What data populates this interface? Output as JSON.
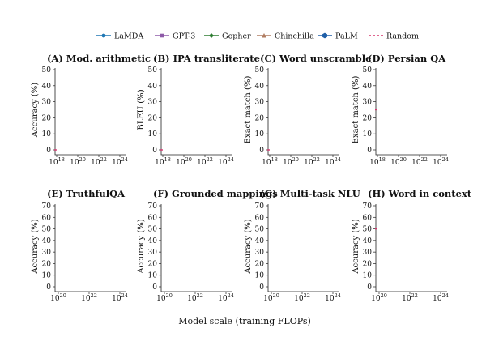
{
  "legend": [
    {
      "name": "LaMDA",
      "color": "#1f77b4",
      "marker": "circle",
      "line": "solid"
    },
    {
      "name": "GPT-3",
      "color": "#8e5aa8",
      "marker": "square",
      "line": "solid"
    },
    {
      "name": "Gopher",
      "color": "#2e7d32",
      "marker": "diamond",
      "line": "solid"
    },
    {
      "name": "Chinchilla",
      "color": "#b07d62",
      "marker": "triangle",
      "line": "solid"
    },
    {
      "name": "PaLM",
      "color": "#1f5fa8",
      "marker": "hexagon",
      "line": "solid"
    },
    {
      "name": "Random",
      "color": "#d6336c",
      "marker": "none",
      "line": "dashed"
    }
  ],
  "xlabel": "Model scale (training FLOPs)",
  "chart_data": [
    {
      "type": "line",
      "title": "(A) Mod. arithmetic",
      "ylabel": "Accuracy (%)",
      "ylim": [
        0,
        50
      ],
      "yticks": [
        "0",
        "10",
        "20",
        "30",
        "40",
        "50"
      ],
      "xticks": [
        {
          "base": "10",
          "exp": "18"
        },
        {
          "base": "10",
          "exp": "20"
        },
        {
          "base": "10",
          "exp": "22"
        },
        {
          "base": "10",
          "exp": "24"
        }
      ],
      "random_baseline": 0,
      "series": []
    },
    {
      "type": "line",
      "title": "(B) IPA transliterate",
      "ylabel": "BLEU (%)",
      "ylim": [
        0,
        50
      ],
      "yticks": [
        "0",
        "10",
        "20",
        "30",
        "40",
        "50"
      ],
      "xticks": [
        {
          "base": "10",
          "exp": "18"
        },
        {
          "base": "10",
          "exp": "20"
        },
        {
          "base": "10",
          "exp": "22"
        },
        {
          "base": "10",
          "exp": "24"
        }
      ],
      "random_baseline": 0,
      "series": []
    },
    {
      "type": "line",
      "title": "(C) Word unscramble",
      "ylabel": "Exact match (%)",
      "ylim": [
        0,
        50
      ],
      "yticks": [
        "0",
        "10",
        "20",
        "30",
        "40",
        "50"
      ],
      "xticks": [
        {
          "base": "10",
          "exp": "18"
        },
        {
          "base": "10",
          "exp": "20"
        },
        {
          "base": "10",
          "exp": "22"
        },
        {
          "base": "10",
          "exp": "24"
        }
      ],
      "random_baseline": 0,
      "series": []
    },
    {
      "type": "line",
      "title": "(D) Persian QA",
      "ylabel": "Exact match (%)",
      "ylim": [
        0,
        50
      ],
      "yticks": [
        "0",
        "10",
        "20",
        "30",
        "40",
        "50"
      ],
      "xticks": [
        {
          "base": "10",
          "exp": "18"
        },
        {
          "base": "10",
          "exp": "20"
        },
        {
          "base": "10",
          "exp": "22"
        },
        {
          "base": "10",
          "exp": "24"
        }
      ],
      "random_baseline": 25,
      "series": []
    },
    {
      "type": "line",
      "title": "(E) TruthfulQA",
      "ylabel": "Accuracy (%)",
      "ylim": [
        0,
        70
      ],
      "yticks": [
        "0",
        "10",
        "20",
        "30",
        "40",
        "50",
        "60",
        "70"
      ],
      "xticks": [
        {
          "base": "10",
          "exp": "20"
        },
        {
          "base": "10",
          "exp": "22"
        },
        {
          "base": "10",
          "exp": "24"
        }
      ],
      "random_baseline": null,
      "series": []
    },
    {
      "type": "line",
      "title": "(F) Grounded mappings",
      "ylabel": "Accuracy (%)",
      "ylim": [
        0,
        70
      ],
      "yticks": [
        "0",
        "10",
        "20",
        "30",
        "40",
        "50",
        "60",
        "70"
      ],
      "xticks": [
        {
          "base": "10",
          "exp": "20"
        },
        {
          "base": "10",
          "exp": "22"
        },
        {
          "base": "10",
          "exp": "24"
        }
      ],
      "random_baseline": null,
      "series": []
    },
    {
      "type": "line",
      "title": "(G) Multi-task NLU",
      "ylabel": "Accuracy (%)",
      "ylim": [
        0,
        70
      ],
      "yticks": [
        "0",
        "10",
        "20",
        "30",
        "40",
        "50",
        "60",
        "70"
      ],
      "xticks": [
        {
          "base": "10",
          "exp": "20"
        },
        {
          "base": "10",
          "exp": "22"
        },
        {
          "base": "10",
          "exp": "24"
        }
      ],
      "random_baseline": null,
      "series": []
    },
    {
      "type": "line",
      "title": "(H) Word in context",
      "ylabel": "Accuracy (%)",
      "ylim": [
        0,
        70
      ],
      "yticks": [
        "0",
        "10",
        "20",
        "30",
        "40",
        "50",
        "60",
        "70"
      ],
      "xticks": [
        {
          "base": "10",
          "exp": "20"
        },
        {
          "base": "10",
          "exp": "22"
        },
        {
          "base": "10",
          "exp": "24"
        }
      ],
      "random_baseline": 50,
      "series": []
    }
  ]
}
